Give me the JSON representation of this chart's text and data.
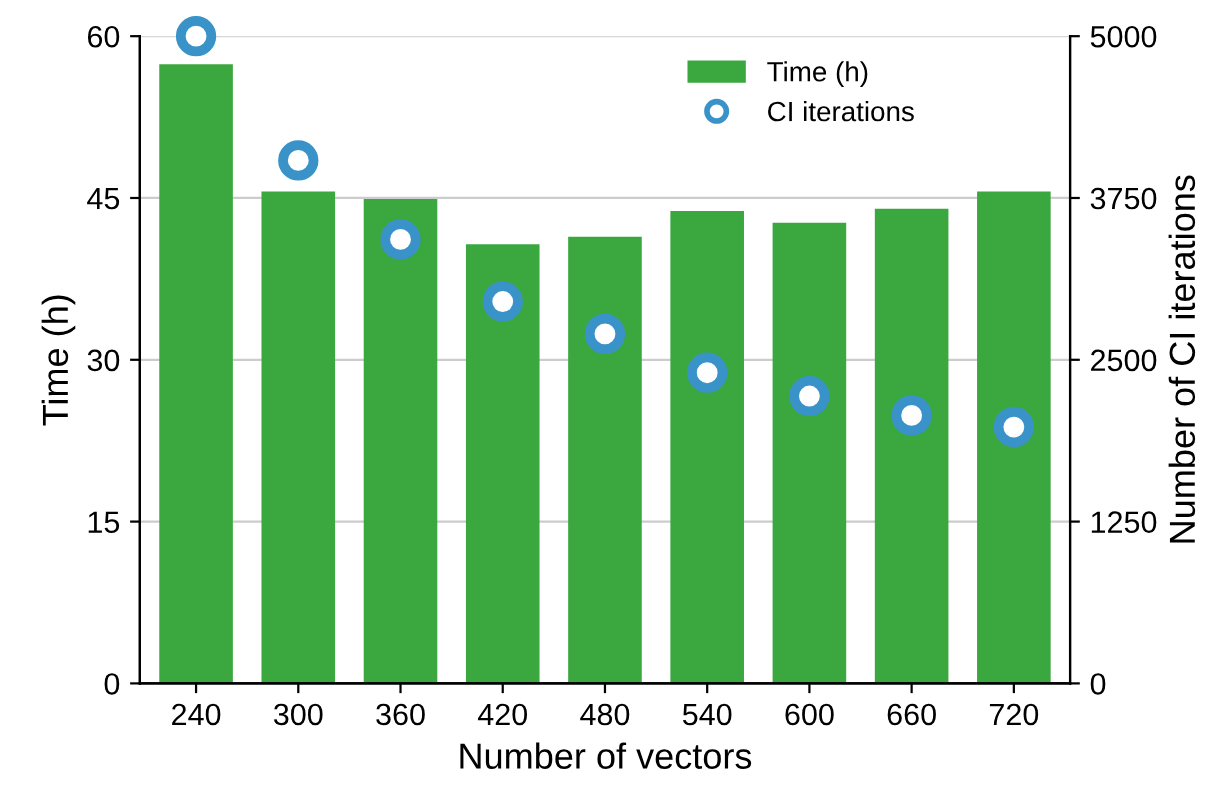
{
  "chart_data": {
    "type": "bar",
    "xlabel": "Number of vectors",
    "ylabel": "Time (h)",
    "y2label": "Number of CI iterations",
    "categories": [
      "240",
      "300",
      "360",
      "420",
      "480",
      "540",
      "600",
      "660",
      "720"
    ],
    "series": [
      {
        "name": "Time (h)",
        "color": "#3aa83f",
        "values": [
          57.4,
          45.6,
          44.9,
          40.7,
          41.4,
          43.8,
          42.7,
          44.0,
          45.6
        ]
      },
      {
        "name": "CI iterations",
        "type": "scatter",
        "axis": "y2",
        "color": "#3a93c8",
        "x": [
          "240",
          "300",
          "360",
          "420",
          "480",
          "540",
          "600",
          "660",
          "720"
        ],
        "values": [
          5000,
          4040,
          3430,
          2950,
          2700,
          2400,
          2220,
          2070,
          1980
        ]
      }
    ],
    "ylim": [
      0,
      60
    ],
    "yticks": [
      0,
      15,
      30,
      45,
      60
    ],
    "y2lim": [
      0,
      5000
    ],
    "y2ticks": [
      0,
      1250,
      2500,
      3750,
      5000
    ],
    "grid": "y",
    "legend": "top right",
    "marker": "circle"
  }
}
